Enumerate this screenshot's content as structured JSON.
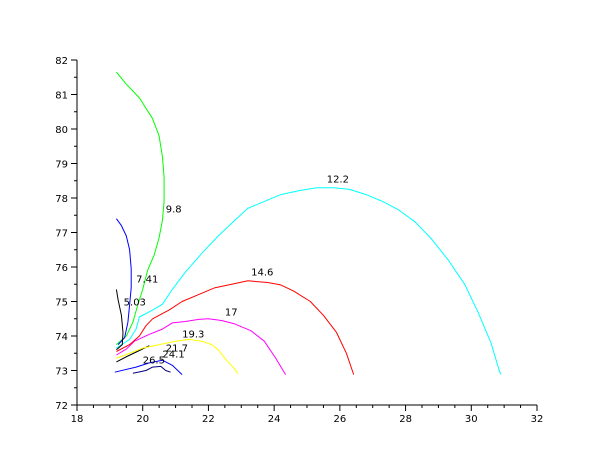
{
  "chart_data": {
    "type": "line",
    "subtype": "contour",
    "title": "",
    "xlabel": "",
    "ylabel": "",
    "xlim": [
      18,
      32
    ],
    "ylim": [
      72,
      82
    ],
    "grid": false,
    "xticks": [
      18,
      20,
      22,
      24,
      26,
      28,
      30,
      32
    ],
    "yticks": [
      72,
      73,
      74,
      75,
      76,
      77,
      78,
      79,
      80,
      81,
      82
    ],
    "series": [
      {
        "name": "26.5",
        "color": "#000080",
        "label": {
          "text": "26.5",
          "x": 20.0,
          "y": 73.2
        },
        "points": [
          [
            19.7,
            72.92
          ],
          [
            20.1,
            73.0
          ],
          [
            20.3,
            73.1
          ],
          [
            20.55,
            73.12
          ],
          [
            20.7,
            73.0
          ],
          [
            20.85,
            72.95
          ]
        ]
      },
      {
        "name": "24.1",
        "color": "#0000ff",
        "label": {
          "text": "24.1",
          "x": 20.6,
          "y": 73.38
        },
        "points": [
          [
            19.15,
            72.95
          ],
          [
            19.8,
            73.1
          ],
          [
            20.2,
            73.22
          ],
          [
            20.6,
            73.3
          ],
          [
            20.9,
            73.15
          ],
          [
            21.2,
            72.88
          ]
        ]
      },
      {
        "name": "21.7",
        "color": "#000000",
        "label": {
          "text": "21.7",
          "x": 20.7,
          "y": 73.55
        },
        "points": [
          [
            19.2,
            73.25
          ],
          [
            19.55,
            73.42
          ],
          [
            19.9,
            73.58
          ],
          [
            20.2,
            73.72
          ]
        ]
      },
      {
        "name": "19.3",
        "color": "#ffff00",
        "label": {
          "text": "19.3",
          "x": 21.2,
          "y": 73.95
        },
        "points": [
          [
            19.2,
            73.35
          ],
          [
            19.6,
            73.5
          ],
          [
            20.0,
            73.65
          ],
          [
            20.5,
            73.75
          ],
          [
            21.0,
            73.85
          ],
          [
            21.4,
            73.9
          ],
          [
            21.8,
            73.85
          ],
          [
            22.1,
            73.75
          ],
          [
            22.3,
            73.6
          ],
          [
            22.55,
            73.3
          ],
          [
            22.8,
            73.05
          ],
          [
            22.9,
            72.9
          ]
        ]
      },
      {
        "name": "17",
        "color": "#ff00ff",
        "label": {
          "text": "17",
          "x": 22.5,
          "y": 74.6
        },
        "points": [
          [
            19.2,
            73.45
          ],
          [
            19.5,
            73.62
          ],
          [
            19.75,
            73.85
          ],
          [
            20.2,
            74.05
          ],
          [
            20.6,
            74.2
          ],
          [
            20.9,
            74.38
          ],
          [
            21.3,
            74.42
          ],
          [
            21.7,
            74.48
          ],
          [
            22.0,
            74.5
          ],
          [
            22.4,
            74.45
          ],
          [
            22.8,
            74.35
          ],
          [
            23.3,
            74.15
          ],
          [
            23.7,
            73.85
          ],
          [
            24.05,
            73.35
          ],
          [
            24.35,
            72.88
          ]
        ]
      },
      {
        "name": "14.6",
        "color": "#ff0000",
        "label": {
          "text": "14.6",
          "x": 23.3,
          "y": 75.75
        },
        "points": [
          [
            19.2,
            73.55
          ],
          [
            19.6,
            73.75
          ],
          [
            19.9,
            74.0
          ],
          [
            20.1,
            74.3
          ],
          [
            20.3,
            74.5
          ],
          [
            20.8,
            74.75
          ],
          [
            21.2,
            75.0
          ],
          [
            21.7,
            75.2
          ],
          [
            22.2,
            75.4
          ],
          [
            22.8,
            75.52
          ],
          [
            23.2,
            75.6
          ],
          [
            23.8,
            75.55
          ],
          [
            24.2,
            75.48
          ],
          [
            24.6,
            75.3
          ],
          [
            25.1,
            75.0
          ],
          [
            25.5,
            74.6
          ],
          [
            25.9,
            74.1
          ],
          [
            26.2,
            73.5
          ],
          [
            26.42,
            72.88
          ]
        ]
      },
      {
        "name": "12.2",
        "color": "#00ffff",
        "label": {
          "text": "12.2",
          "x": 25.6,
          "y": 78.45
        },
        "points": [
          [
            19.2,
            73.65
          ],
          [
            19.6,
            73.9
          ],
          [
            19.8,
            74.2
          ],
          [
            19.9,
            74.55
          ],
          [
            20.3,
            74.75
          ],
          [
            20.6,
            74.92
          ],
          [
            20.9,
            75.35
          ],
          [
            21.3,
            75.85
          ],
          [
            21.8,
            76.4
          ],
          [
            22.3,
            76.9
          ],
          [
            22.8,
            77.35
          ],
          [
            23.2,
            77.7
          ],
          [
            23.7,
            77.9
          ],
          [
            24.2,
            78.1
          ],
          [
            24.8,
            78.22
          ],
          [
            25.3,
            78.3
          ],
          [
            25.8,
            78.3
          ],
          [
            26.3,
            78.25
          ],
          [
            26.8,
            78.1
          ],
          [
            27.3,
            77.9
          ],
          [
            27.8,
            77.65
          ],
          [
            28.3,
            77.3
          ],
          [
            28.8,
            76.8
          ],
          [
            29.3,
            76.2
          ],
          [
            29.8,
            75.5
          ],
          [
            30.2,
            74.7
          ],
          [
            30.6,
            73.8
          ],
          [
            30.85,
            73.0
          ],
          [
            30.9,
            72.88
          ]
        ]
      },
      {
        "name": "9.8",
        "color": "#00ff00",
        "label": {
          "text": "9.8",
          "x": 20.7,
          "y": 77.58
        },
        "points": [
          [
            19.2,
            73.75
          ],
          [
            19.5,
            74.0
          ],
          [
            19.7,
            74.4
          ],
          [
            19.85,
            74.9
          ],
          [
            20.0,
            75.35
          ],
          [
            20.15,
            75.9
          ],
          [
            20.35,
            76.35
          ],
          [
            20.5,
            76.85
          ],
          [
            20.6,
            77.35
          ],
          [
            20.65,
            77.9
          ],
          [
            20.65,
            78.6
          ],
          [
            20.6,
            79.2
          ],
          [
            20.5,
            79.8
          ],
          [
            20.3,
            80.3
          ],
          [
            19.9,
            80.9
          ],
          [
            19.5,
            81.3
          ],
          [
            19.2,
            81.65
          ]
        ]
      },
      {
        "name": "7.41",
        "color": "#0000ff",
        "label": {
          "text": "7.41",
          "x": 19.8,
          "y": 75.55
        },
        "points": [
          [
            19.25,
            73.75
          ],
          [
            19.45,
            73.95
          ],
          [
            19.55,
            74.4
          ],
          [
            19.6,
            74.9
          ],
          [
            19.65,
            75.4
          ],
          [
            19.65,
            75.95
          ],
          [
            19.6,
            76.5
          ],
          [
            19.5,
            76.9
          ],
          [
            19.35,
            77.2
          ],
          [
            19.2,
            77.4
          ]
        ]
      },
      {
        "name": "5.03",
        "color": "#000000",
        "label": {
          "text": "5.03",
          "x": 19.42,
          "y": 74.88
        },
        "points": [
          [
            19.2,
            73.6
          ],
          [
            19.38,
            73.75
          ],
          [
            19.4,
            74.1
          ],
          [
            19.35,
            74.6
          ],
          [
            19.25,
            75.05
          ],
          [
            19.2,
            75.35
          ]
        ]
      }
    ]
  }
}
